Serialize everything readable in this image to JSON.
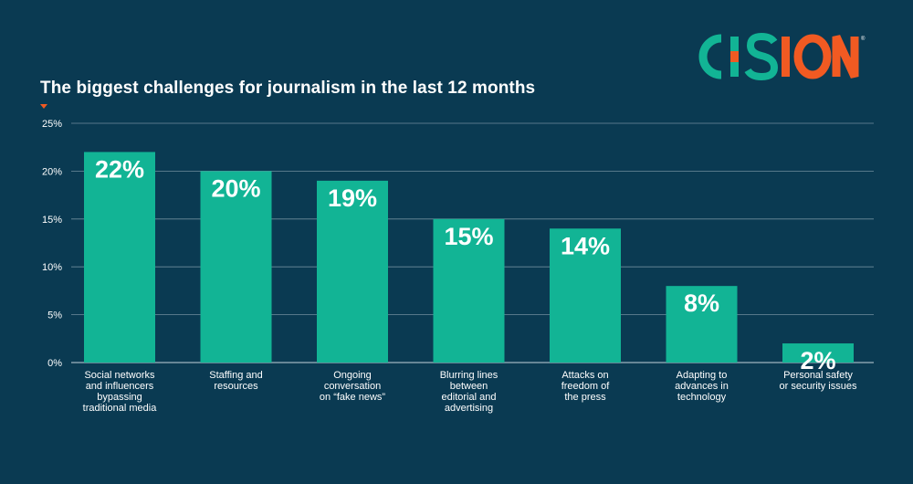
{
  "brand": {
    "name": "CISION",
    "primary_color": "#12b495",
    "accent_color": "#f15a22",
    "background_color": "#0a3a52"
  },
  "chart_data": {
    "type": "bar",
    "title": "The biggest challenges for journalism in the last 12 months",
    "xlabel": "",
    "ylabel": "",
    "ylim": [
      0,
      25
    ],
    "yticks": [
      0,
      5,
      10,
      15,
      20,
      25
    ],
    "ytick_labels": [
      "0%",
      "5%",
      "10%",
      "15%",
      "20%",
      "25%"
    ],
    "grid": true,
    "categories": [
      [
        "Social networks",
        "and influencers",
        "bypassing",
        "traditional media"
      ],
      [
        "Staffing and",
        "resources"
      ],
      [
        "Ongoing",
        "conversation",
        "on “fake news”"
      ],
      [
        "Blurring lines",
        "between",
        "editorial and",
        "advertising"
      ],
      [
        "Attacks on",
        "freedom of",
        "the press"
      ],
      [
        "Adapting to",
        "advances in",
        "technology"
      ],
      [
        "Personal safety",
        "or security issues"
      ]
    ],
    "values": [
      22,
      20,
      19,
      15,
      14,
      8,
      2
    ],
    "data_labels": [
      "22%",
      "20%",
      "19%",
      "15%",
      "14%",
      "8%",
      "2%"
    ],
    "bar_color": "#12b495"
  }
}
